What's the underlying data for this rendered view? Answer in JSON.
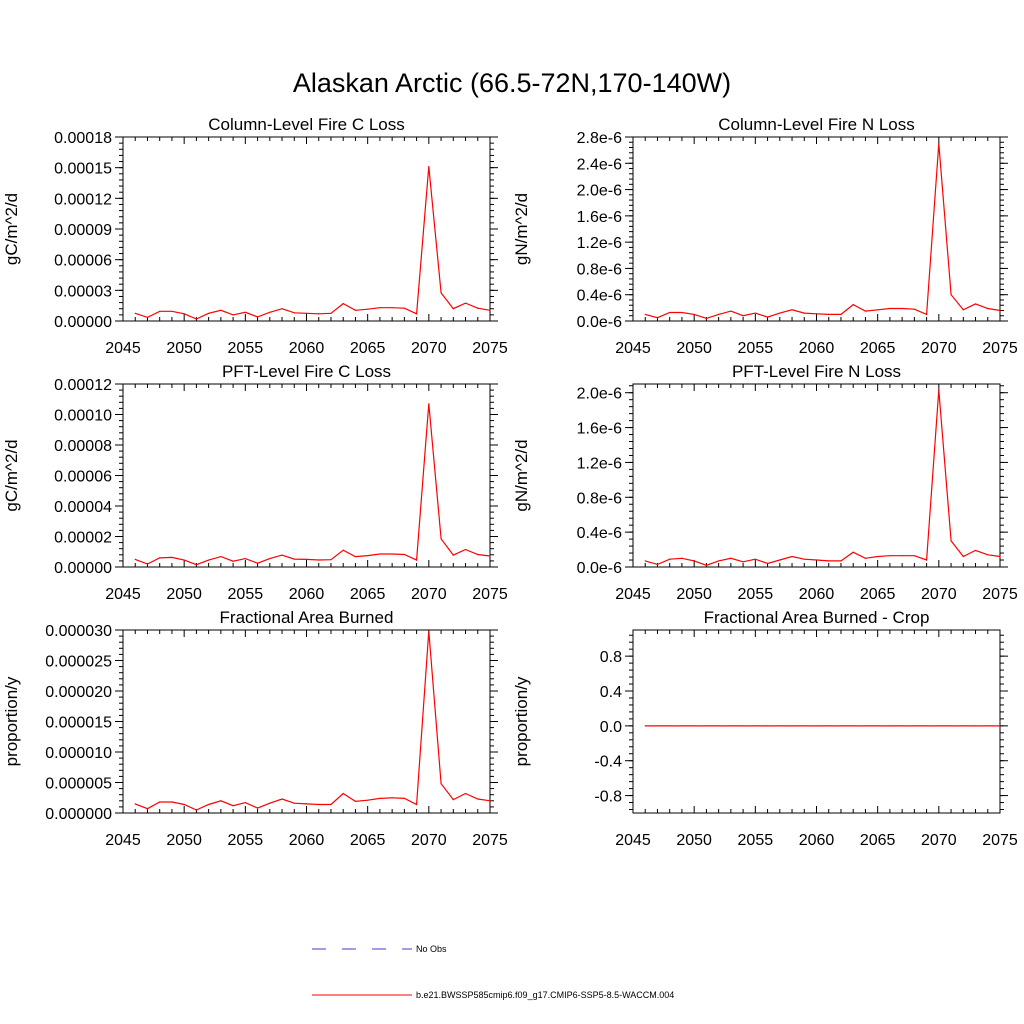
{
  "title": "Alaskan Arctic (66.5-72N,170-140W)",
  "line_color": "#ff0000",
  "obs_color": "#3b3bd6",
  "legend": {
    "obs_label": "No Obs",
    "model_label": "b.e21.BWSSP585cmip6.f09_g17.CMIP6-SSP5-8.5-WACCM.004"
  },
  "chart_data": [
    {
      "type": "line",
      "title": "Column-Level Fire C Loss",
      "ylabel": "gC/m^2/d",
      "xlim": [
        2045,
        2075
      ],
      "ylim": [
        0,
        0.00018
      ],
      "x_ticks": [
        "2045",
        "2050",
        "2055",
        "2060",
        "2065",
        "2070",
        "2075"
      ],
      "y_ticks": [
        {
          "value": 0,
          "label": "0.00000"
        },
        {
          "value": 3e-05,
          "label": "0.00003"
        },
        {
          "value": 6e-05,
          "label": "0.00006"
        },
        {
          "value": 9e-05,
          "label": "0.00009"
        },
        {
          "value": 0.00012,
          "label": "0.00012"
        },
        {
          "value": 0.00015,
          "label": "0.00015"
        },
        {
          "value": 0.00018,
          "label": "0.00018"
        }
      ],
      "x": [
        2046,
        2047,
        2048,
        2049,
        2050,
        2051,
        2052,
        2053,
        2054,
        2055,
        2056,
        2057,
        2058,
        2059,
        2060,
        2061,
        2062,
        2063,
        2064,
        2065,
        2066,
        2067,
        2068,
        2069,
        2070,
        2071,
        2072,
        2073,
        2074,
        2075
      ],
      "y": [
        7.5e-06,
        3.5e-06,
        9.5e-06,
        9.5e-06,
        7e-06,
        2e-06,
        7.5e-06,
        1.05e-05,
        6e-06,
        8.5e-06,
        4e-06,
        8.5e-06,
        1.2e-05,
        8e-06,
        7.5e-06,
        7e-06,
        7.5e-06,
        1.7e-05,
        1.05e-05,
        1.15e-05,
        1.3e-05,
        1.3e-05,
        1.25e-05,
        7e-06,
        0.000151,
        2.75e-05,
        1.2e-05,
        1.75e-05,
        1.25e-05,
        1.05e-05
      ]
    },
    {
      "type": "line",
      "title": "Column-Level Fire N Loss",
      "ylabel": "gN/m^2/d",
      "xlim": [
        2045,
        2075
      ],
      "ylim": [
        0,
        2.8e-06
      ],
      "x_ticks": [
        "2045",
        "2050",
        "2055",
        "2060",
        "2065",
        "2070",
        "2075"
      ],
      "y_ticks": [
        {
          "value": 0,
          "label": "0.0e-6"
        },
        {
          "value": 4e-07,
          "label": "0.4e-6"
        },
        {
          "value": 8e-07,
          "label": "0.8e-6"
        },
        {
          "value": 1.2e-06,
          "label": "1.2e-6"
        },
        {
          "value": 1.6e-06,
          "label": "1.6e-6"
        },
        {
          "value": 2e-06,
          "label": "2.0e-6"
        },
        {
          "value": 2.4e-06,
          "label": "2.4e-6"
        },
        {
          "value": 2.8e-06,
          "label": "2.8e-6"
        }
      ],
      "x": [
        2046,
        2047,
        2048,
        2049,
        2050,
        2051,
        2052,
        2053,
        2054,
        2055,
        2056,
        2057,
        2058,
        2059,
        2060,
        2061,
        2062,
        2063,
        2064,
        2065,
        2066,
        2067,
        2068,
        2069,
        2070,
        2071,
        2072,
        2073,
        2074,
        2075
      ],
      "y": [
        1e-07,
        5e-08,
        1.3e-07,
        1.3e-07,
        1e-07,
        4e-08,
        1e-07,
        1.5e-07,
        8e-08,
        1.2e-07,
        6e-08,
        1.2e-07,
        1.7e-07,
        1.2e-07,
        1.1e-07,
        1e-07,
        1e-07,
        2.5e-07,
        1.5e-07,
        1.7e-07,
        1.9e-07,
        1.9e-07,
        1.8e-07,
        1e-07,
        2.7e-06,
        4e-07,
        1.7e-07,
        2.6e-07,
        1.9e-07,
        1.6e-07
      ]
    },
    {
      "type": "line",
      "title": "PFT-Level Fire C Loss",
      "ylabel": "gC/m^2/d",
      "xlim": [
        2045,
        2075
      ],
      "ylim": [
        0,
        0.00012
      ],
      "x_ticks": [
        "2045",
        "2050",
        "2055",
        "2060",
        "2065",
        "2070",
        "2075"
      ],
      "y_ticks": [
        {
          "value": 0,
          "label": "0.00000"
        },
        {
          "value": 2e-05,
          "label": "0.00002"
        },
        {
          "value": 4e-05,
          "label": "0.00004"
        },
        {
          "value": 6e-05,
          "label": "0.00006"
        },
        {
          "value": 8e-05,
          "label": "0.00008"
        },
        {
          "value": 0.0001,
          "label": "0.00010"
        },
        {
          "value": 0.00012,
          "label": "0.00012"
        }
      ],
      "x": [
        2046,
        2047,
        2048,
        2049,
        2050,
        2051,
        2052,
        2053,
        2054,
        2055,
        2056,
        2057,
        2058,
        2059,
        2060,
        2061,
        2062,
        2063,
        2064,
        2065,
        2066,
        2067,
        2068,
        2069,
        2070,
        2071,
        2072,
        2073,
        2074,
        2075
      ],
      "y": [
        5e-06,
        2e-06,
        6e-06,
        6.3e-06,
        4.5e-06,
        1.5e-06,
        4.5e-06,
        6.8e-06,
        3.8e-06,
        5.5e-06,
        2.5e-06,
        5.5e-06,
        7.8e-06,
        5.2e-06,
        5e-06,
        4.6e-06,
        4.8e-06,
        1.1e-05,
        6.8e-06,
        7.5e-06,
        8.5e-06,
        8.5e-06,
        8.2e-06,
        4.5e-06,
        0.000107,
        1.85e-05,
        7.8e-06,
        1.15e-05,
        8.2e-06,
        7.2e-06
      ]
    },
    {
      "type": "line",
      "title": "PFT-Level Fire N Loss",
      "ylabel": "gN/m^2/d",
      "xlim": [
        2045,
        2075
      ],
      "ylim": [
        0,
        2.1e-06
      ],
      "x_ticks": [
        "2045",
        "2050",
        "2055",
        "2060",
        "2065",
        "2070",
        "2075"
      ],
      "y_ticks": [
        {
          "value": 0,
          "label": "0.0e-6"
        },
        {
          "value": 4e-07,
          "label": "0.4e-6"
        },
        {
          "value": 8e-07,
          "label": "0.8e-6"
        },
        {
          "value": 1.2e-06,
          "label": "1.2e-6"
        },
        {
          "value": 1.6e-06,
          "label": "1.6e-6"
        },
        {
          "value": 2e-06,
          "label": "2.0e-6"
        }
      ],
      "x": [
        2046,
        2047,
        2048,
        2049,
        2050,
        2051,
        2052,
        2053,
        2054,
        2055,
        2056,
        2057,
        2058,
        2059,
        2060,
        2061,
        2062,
        2063,
        2064,
        2065,
        2066,
        2067,
        2068,
        2069,
        2070,
        2071,
        2072,
        2073,
        2074,
        2075
      ],
      "y": [
        7e-08,
        3e-08,
        9e-08,
        1e-07,
        7e-08,
        2e-08,
        7e-08,
        1e-07,
        6e-08,
        9e-08,
        4e-08,
        8e-08,
        1.2e-07,
        9e-08,
        8e-08,
        7e-08,
        7e-08,
        1.7e-07,
        1e-07,
        1.2e-07,
        1.3e-07,
        1.3e-07,
        1.3e-07,
        8e-08,
        2.03e-06,
        3e-07,
        1.2e-07,
        1.9e-07,
        1.4e-07,
        1.2e-07
      ]
    },
    {
      "type": "line",
      "title": "Fractional Area Burned",
      "ylabel": "proportion/y",
      "xlim": [
        2045,
        2075
      ],
      "ylim": [
        0,
        3e-05
      ],
      "x_ticks": [
        "2045",
        "2050",
        "2055",
        "2060",
        "2065",
        "2070",
        "2075"
      ],
      "y_ticks": [
        {
          "value": 0,
          "label": "0.000000"
        },
        {
          "value": 5e-06,
          "label": "0.000005"
        },
        {
          "value": 1e-05,
          "label": "0.000010"
        },
        {
          "value": 1.5e-05,
          "label": "0.000015"
        },
        {
          "value": 2e-05,
          "label": "0.000020"
        },
        {
          "value": 2.5e-05,
          "label": "0.000025"
        },
        {
          "value": 3e-05,
          "label": "0.000030"
        }
      ],
      "x": [
        2046,
        2047,
        2048,
        2049,
        2050,
        2051,
        2052,
        2053,
        2054,
        2055,
        2056,
        2057,
        2058,
        2059,
        2060,
        2061,
        2062,
        2063,
        2064,
        2065,
        2066,
        2067,
        2068,
        2069,
        2070,
        2071,
        2072,
        2073,
        2074,
        2075
      ],
      "y": [
        1.5e-06,
        7e-07,
        1.8e-06,
        1.8e-06,
        1.4e-06,
        5e-07,
        1.4e-06,
        2e-06,
        1.2e-06,
        1.7e-06,
        8e-07,
        1.6e-06,
        2.3e-06,
        1.6e-06,
        1.5e-06,
        1.4e-06,
        1.4e-06,
        3.2e-06,
        1.9e-06,
        2.1e-06,
        2.4e-06,
        2.5e-06,
        2.4e-06,
        1.4e-06,
        2.98e-05,
        4.8e-06,
        2.2e-06,
        3.2e-06,
        2.3e-06,
        2e-06
      ]
    },
    {
      "type": "line",
      "title": "Fractional Area Burned - Crop",
      "ylabel": "proportion/y",
      "xlim": [
        2045,
        2075
      ],
      "ylim": [
        -1,
        1.1
      ],
      "x_ticks": [
        "2045",
        "2050",
        "2055",
        "2060",
        "2065",
        "2070",
        "2075"
      ],
      "y_ticks": [
        {
          "value": -0.8,
          "label": "-0.8"
        },
        {
          "value": -0.4,
          "label": "-0.4"
        },
        {
          "value": 0,
          "label": "0.0"
        },
        {
          "value": 0.4,
          "label": "0.4"
        },
        {
          "value": 0.8,
          "label": "0.8"
        }
      ],
      "x": [
        2046,
        2047,
        2048,
        2049,
        2050,
        2051,
        2052,
        2053,
        2054,
        2055,
        2056,
        2057,
        2058,
        2059,
        2060,
        2061,
        2062,
        2063,
        2064,
        2065,
        2066,
        2067,
        2068,
        2069,
        2070,
        2071,
        2072,
        2073,
        2074,
        2075
      ],
      "y": [
        0,
        0,
        0,
        0,
        0,
        0,
        0,
        0,
        0,
        0,
        0,
        0,
        0,
        0,
        0,
        0,
        0,
        0,
        0,
        0,
        0,
        0,
        0,
        0,
        0,
        0,
        0,
        0,
        0,
        0
      ]
    }
  ]
}
